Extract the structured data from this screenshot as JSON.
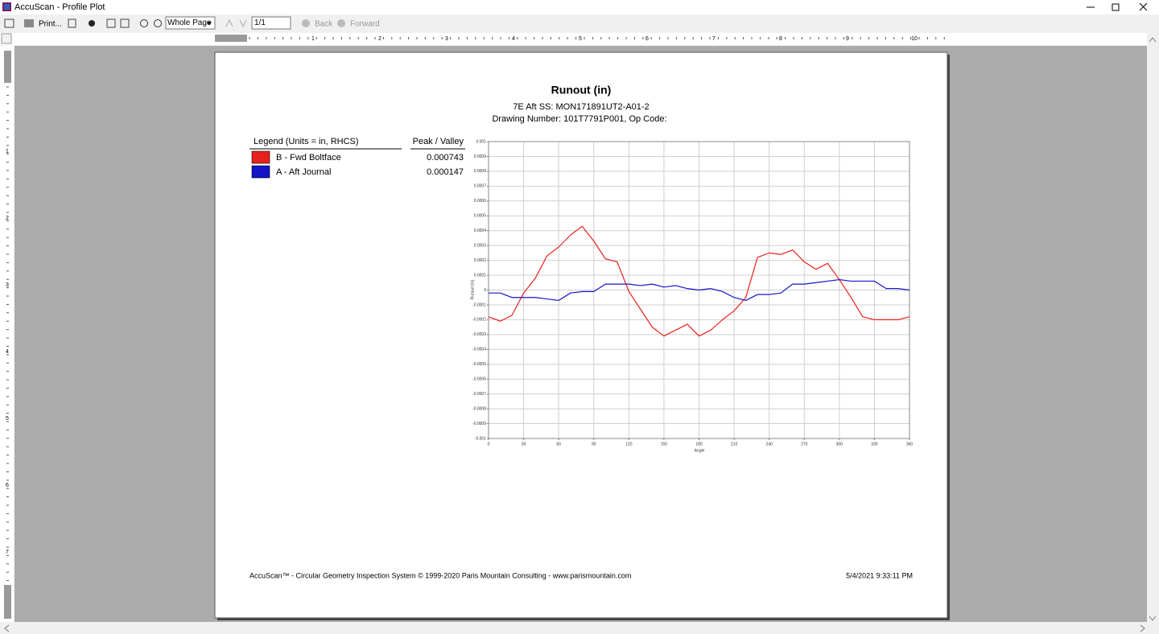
{
  "window": {
    "title": "AccuScan - Profile Plot"
  },
  "toolbar": {
    "print": "Print...",
    "zoom": "Whole Page",
    "page": "1/1",
    "back": "Back",
    "forward": "Forward"
  },
  "rulers": {
    "horizontal": [
      "1",
      "2",
      "3",
      "4",
      "5",
      "6",
      "7",
      "8",
      "9",
      "10"
    ],
    "vertical": [
      "1",
      "2",
      "3",
      "4",
      "5",
      "6",
      "7"
    ]
  },
  "report": {
    "footer_left": "AccuScan™ - Circular Geometry Inspection System © 1999-2020 Paris Mountain Consulting - www.parismountain.com",
    "footer_right": "5/4/2021 9:33:11 PM"
  },
  "chart_data": {
    "type": "line",
    "title": "Runout (in)",
    "subtitle": [
      "7E Aft SS: MON171891UT2-A01-2",
      "Drawing Number: 101T7791P001, Op Code:"
    ],
    "legend_title": "Legend (Units = in, RHCS)",
    "legend_value_header": "Peak / Valley",
    "x_label": "Angle",
    "y_label": "Runout (in)",
    "x": [
      0,
      10,
      20,
      30,
      40,
      50,
      60,
      70,
      80,
      90,
      100,
      110,
      120,
      130,
      140,
      150,
      160,
      170,
      180,
      190,
      200,
      210,
      220,
      230,
      240,
      250,
      260,
      270,
      280,
      290,
      300,
      310,
      320,
      330,
      340,
      350,
      360
    ],
    "series": [
      {
        "name": "B - Fwd Boltface",
        "color": "#e8211d",
        "peak_valley": 0.000743,
        "values": [
          -0.00018,
          -0.00021,
          -0.00017,
          -2e-05,
          8e-05,
          0.00023,
          0.00029,
          0.00037,
          0.00043,
          0.00033,
          0.00021,
          0.00019,
          -1e-05,
          -0.00013,
          -0.00025,
          -0.00031,
          -0.00027,
          -0.00023,
          -0.00031,
          -0.00027,
          -0.0002,
          -0.00014,
          -5e-05,
          0.00022,
          0.00025,
          0.00024,
          0.00027,
          0.00019,
          0.00014,
          0.00018,
          7e-05,
          -5e-05,
          -0.00018,
          -0.0002,
          -0.0002,
          -0.0002,
          -0.00018
        ]
      },
      {
        "name": "A - Aft Journal",
        "color": "#1414c8",
        "peak_valley": 0.000147,
        "values": [
          -2e-05,
          -2e-05,
          -5e-05,
          -5e-05,
          -5e-05,
          -6e-05,
          -7e-05,
          -2e-05,
          -1e-05,
          -1e-05,
          4e-05,
          4e-05,
          4e-05,
          3e-05,
          4e-05,
          2e-05,
          3e-05,
          1e-05,
          0,
          1e-05,
          -1e-05,
          -5e-05,
          -7e-05,
          -3e-05,
          -3e-05,
          -2e-05,
          4e-05,
          4e-05,
          5e-05,
          6e-05,
          7e-05,
          6e-05,
          6e-05,
          6e-05,
          1e-05,
          1e-05,
          0
        ]
      }
    ],
    "xlim": [
      0,
      360
    ],
    "xticks": [
      0,
      30,
      60,
      90,
      120,
      150,
      180,
      210,
      240,
      270,
      300,
      330,
      360
    ],
    "ylim": [
      -0.001,
      0.001
    ],
    "yticks": [
      0.001,
      0.0009,
      0.0008,
      0.0007,
      0.0006,
      0.0005,
      0.0004,
      0.0003,
      0.0002,
      0.0001,
      0,
      -0.0001,
      -0.0002,
      -0.0003,
      -0.0004,
      -0.0005,
      -0.0006,
      -0.0007,
      -0.0008,
      -0.0009,
      -0.001
    ],
    "grid": true
  }
}
